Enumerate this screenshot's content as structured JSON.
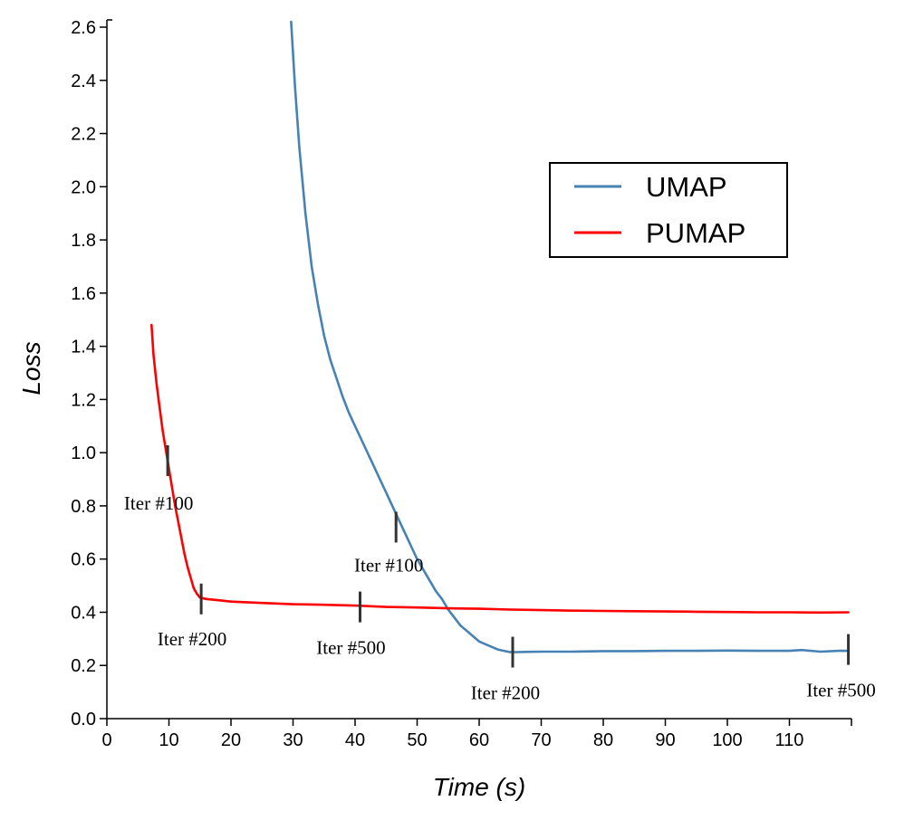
{
  "chart_data": {
    "type": "line",
    "xlabel": "Time (s)",
    "ylabel": "Loss",
    "xlim": [
      0,
      120
    ],
    "ylim": [
      0,
      2.6
    ],
    "x_ticks": [
      0,
      10,
      20,
      30,
      40,
      50,
      60,
      70,
      80,
      90,
      100,
      110
    ],
    "y_ticks": [
      "0.0",
      "0.2",
      "0.4",
      "0.6",
      "0.8",
      "1.0",
      "1.2",
      "1.4",
      "1.6",
      "1.8",
      "2.0",
      "2.2",
      "2.4",
      "2.6"
    ],
    "legend_position": "top-right",
    "series": [
      {
        "name": "UMAP",
        "color": "#4682b4",
        "points": [
          [
            29.7,
            2.62
          ],
          [
            30.3,
            2.38
          ],
          [
            31,
            2.15
          ],
          [
            32,
            1.9
          ],
          [
            33,
            1.7
          ],
          [
            34,
            1.56
          ],
          [
            35,
            1.44
          ],
          [
            36,
            1.35
          ],
          [
            37,
            1.28
          ],
          [
            38,
            1.21
          ],
          [
            39,
            1.15
          ],
          [
            40,
            1.1
          ],
          [
            41,
            1.05
          ],
          [
            42,
            1.0
          ],
          [
            43,
            0.95
          ],
          [
            44,
            0.9
          ],
          [
            45,
            0.85
          ],
          [
            46,
            0.8
          ],
          [
            47,
            0.75
          ],
          [
            48,
            0.7
          ],
          [
            49,
            0.65
          ],
          [
            50,
            0.6
          ],
          [
            51,
            0.56
          ],
          [
            52,
            0.52
          ],
          [
            53,
            0.48
          ],
          [
            54,
            0.45
          ],
          [
            55,
            0.41
          ],
          [
            56,
            0.38
          ],
          [
            57,
            0.35
          ],
          [
            58,
            0.33
          ],
          [
            59,
            0.31
          ],
          [
            60,
            0.29
          ],
          [
            61,
            0.28
          ],
          [
            62,
            0.27
          ],
          [
            63,
            0.26
          ],
          [
            64,
            0.255
          ],
          [
            65,
            0.25
          ],
          [
            66,
            0.25
          ],
          [
            68,
            0.251
          ],
          [
            70,
            0.252
          ],
          [
            75,
            0.252
          ],
          [
            80,
            0.254
          ],
          [
            85,
            0.254
          ],
          [
            90,
            0.255
          ],
          [
            95,
            0.255
          ],
          [
            100,
            0.256
          ],
          [
            105,
            0.255
          ],
          [
            110,
            0.255
          ],
          [
            112,
            0.258
          ],
          [
            115,
            0.252
          ],
          [
            118,
            0.255
          ],
          [
            119.5,
            0.255
          ]
        ],
        "markers": [
          {
            "x": 46.6,
            "y": 0.72,
            "label": "Iter #100"
          },
          {
            "x": 65.4,
            "y": 0.25,
            "label": "Iter #200"
          },
          {
            "x": 119.5,
            "y": 0.26,
            "label": "Iter #500"
          }
        ]
      },
      {
        "name": "PUMAP",
        "color": "#ff0000",
        "points": [
          [
            7.2,
            1.48
          ],
          [
            7.5,
            1.37
          ],
          [
            8,
            1.26
          ],
          [
            8.5,
            1.17
          ],
          [
            9,
            1.08
          ],
          [
            9.5,
            1.01
          ],
          [
            10,
            0.94
          ],
          [
            10.5,
            0.87
          ],
          [
            11,
            0.8
          ],
          [
            11.5,
            0.74
          ],
          [
            12,
            0.68
          ],
          [
            12.5,
            0.62
          ],
          [
            13,
            0.57
          ],
          [
            13.5,
            0.53
          ],
          [
            14,
            0.49
          ],
          [
            14.5,
            0.47
          ],
          [
            15,
            0.455
          ],
          [
            16,
            0.45
          ],
          [
            18,
            0.445
          ],
          [
            20,
            0.44
          ],
          [
            25,
            0.435
          ],
          [
            30,
            0.43
          ],
          [
            35,
            0.428
          ],
          [
            40,
            0.425
          ],
          [
            45,
            0.42
          ],
          [
            50,
            0.418
          ],
          [
            55,
            0.415
          ],
          [
            60,
            0.413
          ],
          [
            65,
            0.41
          ],
          [
            70,
            0.408
          ],
          [
            75,
            0.406
          ],
          [
            80,
            0.405
          ],
          [
            85,
            0.404
          ],
          [
            90,
            0.403
          ],
          [
            95,
            0.402
          ],
          [
            100,
            0.401
          ],
          [
            105,
            0.4
          ],
          [
            110,
            0.4
          ],
          [
            115,
            0.399
          ],
          [
            119.5,
            0.4
          ]
        ],
        "markers": [
          {
            "x": 9.8,
            "y": 0.97,
            "label": "Iter #100"
          },
          {
            "x": 15.2,
            "y": 0.45,
            "label": "Iter #200"
          },
          {
            "x": 40.8,
            "y": 0.42,
            "label": "Iter #500"
          }
        ]
      }
    ]
  }
}
